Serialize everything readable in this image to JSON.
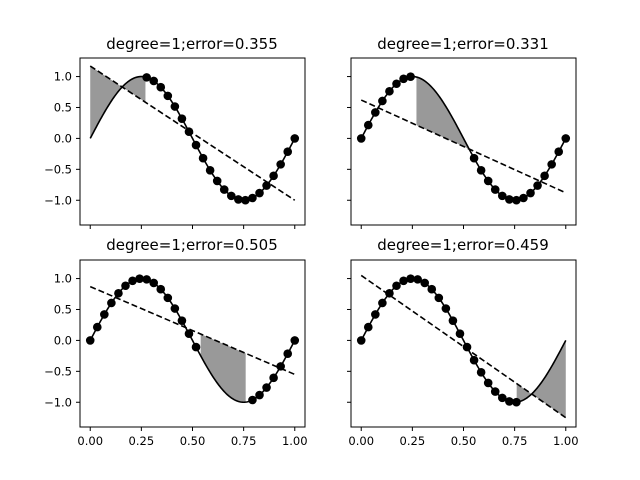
{
  "chart_data": [
    {
      "type": "line",
      "title": "degree=1;error=0.355",
      "xlim": [
        -0.05,
        1.05
      ],
      "ylim": [
        -1.4,
        1.3
      ],
      "x_ticks": [
        0.0,
        0.25,
        0.5,
        0.75,
        1.0
      ],
      "x_tick_labels": [
        "",
        "",
        "",
        "",
        ""
      ],
      "y_ticks": [
        1.0,
        0.5,
        0.0,
        -0.5,
        -1.0
      ],
      "y_tick_labels": [
        "1.0",
        "0.5",
        "0.0",
        "−0.5",
        "−1.0"
      ],
      "fit_line": {
        "x": [
          0.0,
          1.0
        ],
        "y": [
          1.17,
          -1.0
        ]
      },
      "dotted_range": [
        0.27,
        1.0
      ],
      "shaded_range": [
        0.0,
        0.27
      ],
      "shade_color": "#999999"
    },
    {
      "type": "line",
      "title": "degree=1;error=0.331",
      "xlim": [
        -0.05,
        1.05
      ],
      "ylim": [
        -1.4,
        1.3
      ],
      "x_ticks": [
        0.0,
        0.25,
        0.5,
        0.75,
        1.0
      ],
      "x_tick_labels": [
        "",
        "",
        "",
        "",
        ""
      ],
      "y_ticks": [
        1.0,
        0.5,
        0.0,
        -0.5,
        -1.0
      ],
      "y_tick_labels": [
        "",
        "",
        "",
        "",
        ""
      ],
      "fit_line": {
        "x": [
          0.0,
          1.0
        ],
        "y": [
          0.62,
          -0.88
        ]
      },
      "dotted_ranges": [
        [
          0.0,
          0.27
        ],
        [
          0.52,
          1.0
        ]
      ],
      "shaded_range": [
        0.27,
        0.52
      ],
      "shade_color": "#999999"
    },
    {
      "type": "line",
      "title": "degree=1;error=0.505",
      "xlim": [
        -0.05,
        1.05
      ],
      "ylim": [
        -1.4,
        1.3
      ],
      "x_ticks": [
        0.0,
        0.25,
        0.5,
        0.75,
        1.0
      ],
      "x_tick_labels": [
        "0.00",
        "0.25",
        "0.50",
        "0.75",
        "1.00"
      ],
      "y_ticks": [
        1.0,
        0.5,
        0.0,
        -0.5,
        -1.0
      ],
      "y_tick_labels": [
        "1.0",
        "0.5",
        "0.0",
        "−0.5",
        "−1.0"
      ],
      "fit_line": {
        "x": [
          0.0,
          1.0
        ],
        "y": [
          0.87,
          -0.55
        ]
      },
      "dotted_ranges": [
        [
          0.0,
          0.54
        ],
        [
          0.77,
          1.0
        ]
      ],
      "shaded_range": [
        0.54,
        0.76
      ],
      "shade_color": "#999999"
    },
    {
      "type": "line",
      "title": "degree=1;error=0.459",
      "xlim": [
        -0.05,
        1.05
      ],
      "ylim": [
        -1.4,
        1.3
      ],
      "x_ticks": [
        0.0,
        0.25,
        0.5,
        0.75,
        1.0
      ],
      "x_tick_labels": [
        "0.00",
        "0.25",
        "0.50",
        "0.75",
        "1.00"
      ],
      "y_ticks": [
        1.0,
        0.5,
        0.0,
        -0.5,
        -1.0
      ],
      "y_tick_labels": [
        "",
        "",
        "",
        "",
        ""
      ],
      "fit_line": {
        "x": [
          0.0,
          1.0
        ],
        "y": [
          1.05,
          -1.25
        ]
      },
      "dotted_range": [
        0.0,
        0.76
      ],
      "shaded_range": [
        0.76,
        1.0
      ],
      "shade_color": "#999999"
    }
  ]
}
